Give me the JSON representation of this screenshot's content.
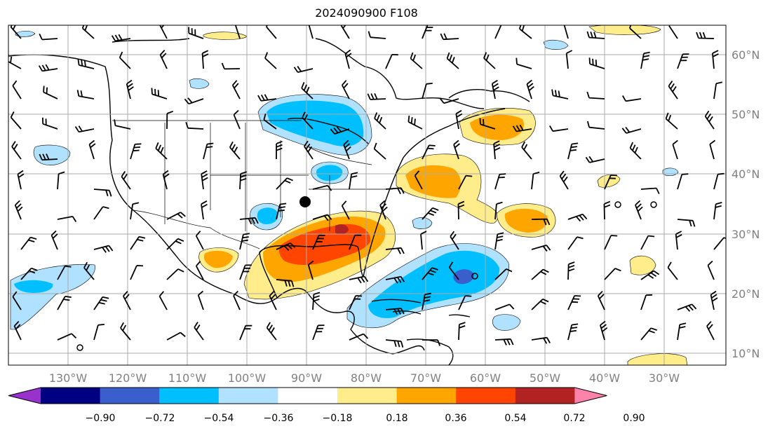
{
  "title": "2024090900 F108",
  "map": {
    "lon_labels": [
      "130°W",
      "120°W",
      "110°W",
      "100°W",
      "90°W",
      "80°W",
      "70°W",
      "60°W",
      "50°W",
      "40°W",
      "30°W"
    ],
    "lat_labels": [
      "60°N",
      "50°N",
      "40°N",
      "30°N",
      "20°N",
      "10°N"
    ]
  },
  "colorbar": {
    "tick_labels": [
      "−0.90",
      "−0.72",
      "−0.54",
      "−0.36",
      "−0.18",
      "0.18",
      "0.36",
      "0.54",
      "0.72",
      "0.90"
    ],
    "colors": [
      "#9932CC",
      "#000080",
      "#3A5FCD",
      "#00BFFF",
      "#B0E2FF",
      "#FFFFFF",
      "#FFEC8B",
      "#FFA500",
      "#FF4500",
      "#B22222",
      "#FF82AB"
    ]
  }
}
